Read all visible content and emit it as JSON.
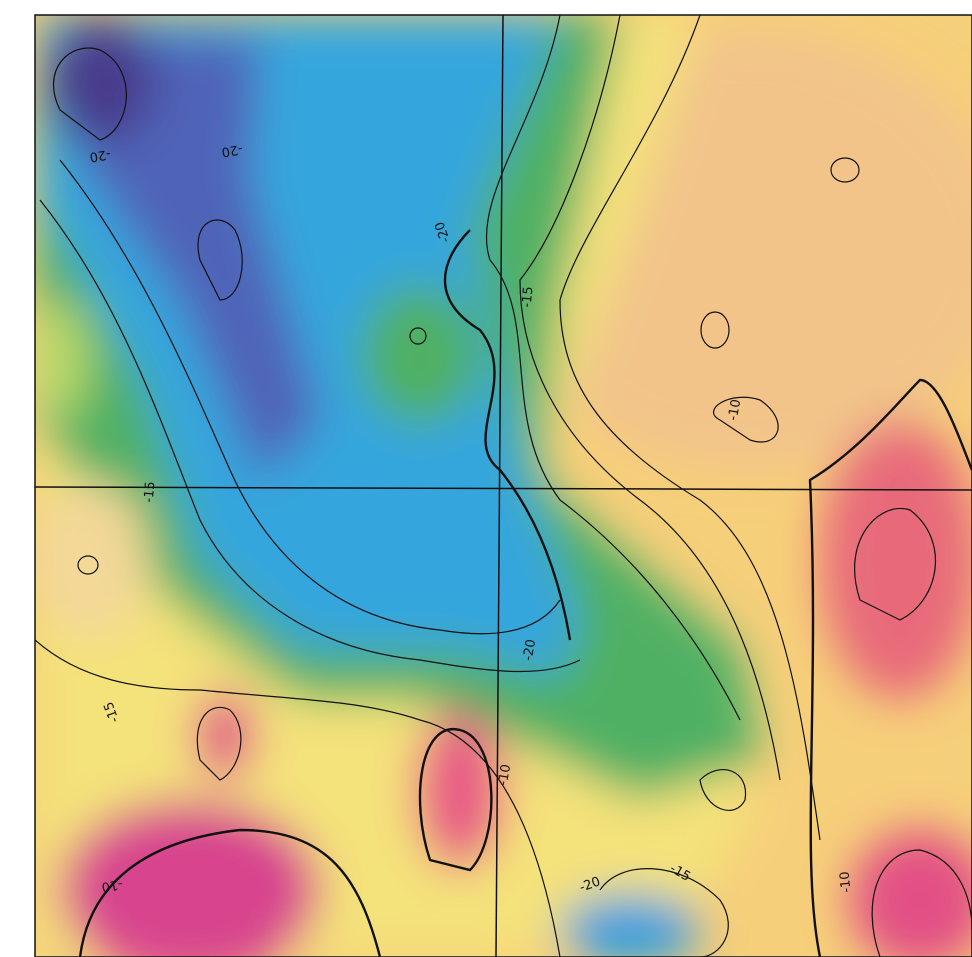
{
  "map": {
    "contour_labels": [
      "-20",
      "-20",
      "-20",
      "-15",
      "-10",
      "-15",
      "-20",
      "-15",
      "-10",
      "-10",
      "-20",
      "-15",
      "-10"
    ]
  }
}
